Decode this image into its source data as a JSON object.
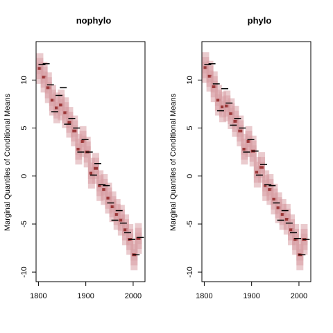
{
  "chart_data": [
    {
      "type": "scatter",
      "title": "nophylo",
      "xlabel": "",
      "ylabel": "Marginal Quantiles of Conditional Means",
      "xlim": [
        1795,
        2025
      ],
      "ylim": [
        -11,
        14
      ],
      "xticks": [
        1800,
        1900,
        2000
      ],
      "yticks": [
        10,
        5,
        0,
        -5,
        -10
      ],
      "band_color": "#d9a0a5",
      "center_color": "#8b1a1a",
      "obs_color": "#000000",
      "x": [
        1803,
        1812,
        1821,
        1830,
        1839,
        1848,
        1857,
        1866,
        1876,
        1885,
        1894,
        1903,
        1912,
        1921,
        1930,
        1939,
        1948,
        1957,
        1966,
        1975,
        1984,
        1993,
        2002,
        2011
      ],
      "median": [
        11.2,
        10.3,
        9.2,
        7.9,
        7.1,
        7.4,
        6.6,
        5.6,
        4.7,
        2.8,
        3.6,
        2.5,
        0.3,
        0.8,
        -1.0,
        -1.4,
        -2.3,
        -3.2,
        -4.0,
        -4.6,
        -5.6,
        -6.6,
        -8.2,
        -6.5
      ],
      "observed": [
        11.6,
        11.7,
        9.5,
        6.7,
        8.4,
        9.2,
        5.4,
        6.0,
        5.0,
        2.5,
        3.8,
        2.5,
        0.1,
        1.3,
        -0.9,
        -1.0,
        -2.8,
        -4.6,
        -3.6,
        -4.9,
        -5.9,
        -6.6,
        -8.2,
        -6.4
      ]
    },
    {
      "type": "scatter",
      "title": "phylo",
      "xlabel": "",
      "ylabel": "Marginal Quantiles of Conditional Means",
      "xlim": [
        1795,
        2025
      ],
      "ylim": [
        -11,
        14
      ],
      "xticks": [
        1800,
        1900,
        2000
      ],
      "yticks": [
        10,
        5,
        0,
        -5,
        -10
      ],
      "band_color": "#d9a0a5",
      "center_color": "#8b1a1a",
      "obs_color": "#000000",
      "x": [
        1803,
        1812,
        1821,
        1830,
        1839,
        1848,
        1857,
        1866,
        1876,
        1885,
        1894,
        1903,
        1912,
        1921,
        1930,
        1939,
        1948,
        1957,
        1966,
        1975,
        1984,
        1993,
        2002,
        2011
      ],
      "median": [
        11.3,
        10.4,
        9.3,
        7.9,
        7.2,
        7.3,
        6.5,
        5.7,
        4.7,
        2.8,
        3.6,
        2.6,
        0.4,
        0.9,
        -1.0,
        -1.4,
        -2.4,
        -3.3,
        -4.0,
        -4.5,
        -5.6,
        -6.6,
        -8.2,
        -6.6
      ],
      "observed": [
        11.6,
        11.7,
        9.6,
        6.8,
        9.1,
        7.6,
        5.3,
        6.0,
        5.0,
        2.5,
        3.8,
        2.6,
        0.1,
        1.2,
        -0.9,
        -1.0,
        -2.8,
        -4.6,
        -3.6,
        -4.9,
        -5.9,
        -6.5,
        -8.2,
        -6.6
      ]
    }
  ]
}
